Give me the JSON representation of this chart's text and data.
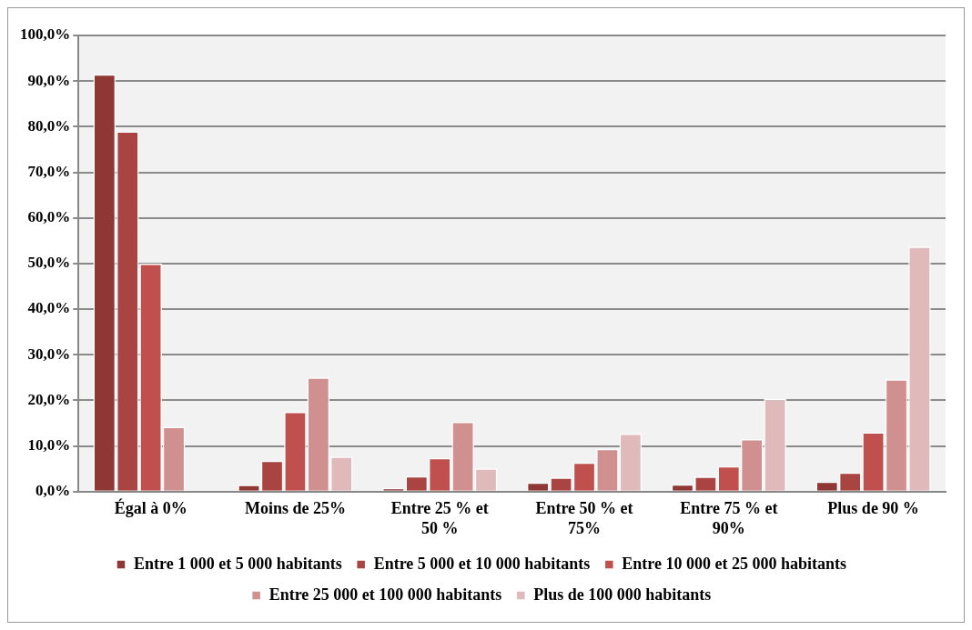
{
  "chart_data": {
    "type": "bar",
    "categories": [
      "Égal à 0%",
      "Moins de 25%",
      "Entre 25 % et 50 %",
      "Entre 50 % et 75%",
      "Entre 75 % et 90%",
      "Plus de 90 %"
    ],
    "series": [
      {
        "name": "Entre 1 000 et 5 000 habitants",
        "color": "#8f3735",
        "values": [
          91.5,
          1.5,
          0.8,
          2.0,
          1.6,
          2.2
        ]
      },
      {
        "name": "Entre 5 000 et 10 000 habitants",
        "color": "#a94442",
        "values": [
          79.0,
          6.8,
          3.4,
          3.1,
          3.3,
          4.2
        ]
      },
      {
        "name": "Entre 10 000 et 25 000 habitants",
        "color": "#c0504d",
        "values": [
          50.0,
          17.5,
          7.4,
          6.4,
          5.6,
          13.0
        ]
      },
      {
        "name": "Entre 25 000 et 100 000 habitants",
        "color": "#d09090",
        "values": [
          14.2,
          25.0,
          15.3,
          9.4,
          11.5,
          24.6
        ]
      },
      {
        "name": "Plus de 100 000 habitants",
        "color": "#e0baba",
        "values": [
          0,
          7.7,
          5.1,
          12.7,
          20.3,
          53.7
        ]
      }
    ],
    "ylim": [
      0,
      100
    ],
    "yticks": [
      {
        "value": 0,
        "label": "0,0%"
      },
      {
        "value": 10,
        "label": "10,0%"
      },
      {
        "value": 20,
        "label": "20,0%"
      },
      {
        "value": 30,
        "label": "30,0%"
      },
      {
        "value": 40,
        "label": "40,0%"
      },
      {
        "value": 50,
        "label": "50,0%"
      },
      {
        "value": 60,
        "label": "60,0%"
      },
      {
        "value": 70,
        "label": "70,0%"
      },
      {
        "value": 80,
        "label": "80,0%"
      },
      {
        "value": 90,
        "label": "90,0%"
      },
      {
        "value": 100,
        "label": "100,0%"
      }
    ],
    "grid": "y",
    "legend": "bottom"
  }
}
